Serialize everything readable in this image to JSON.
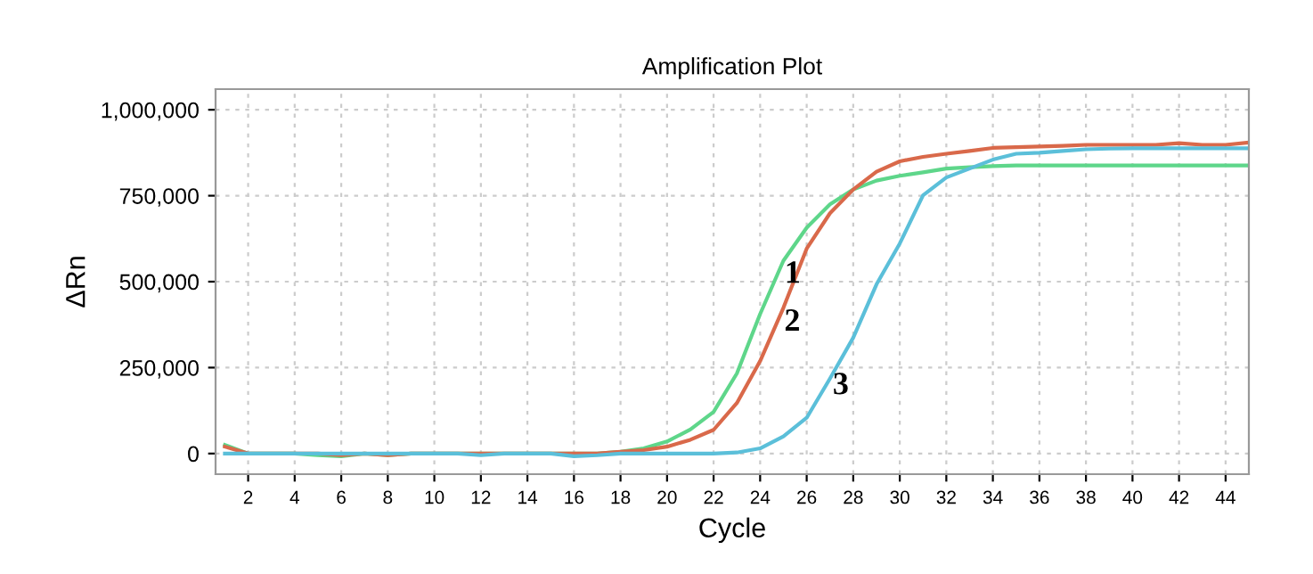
{
  "chart_data": {
    "type": "line",
    "title": "Amplification Plot",
    "xlabel": "Cycle",
    "ylabel": "ΔRn",
    "x": [
      1,
      2,
      3,
      4,
      5,
      6,
      7,
      8,
      9,
      10,
      11,
      12,
      13,
      14,
      15,
      16,
      17,
      18,
      19,
      20,
      21,
      22,
      23,
      24,
      25,
      26,
      27,
      28,
      29,
      30,
      31,
      32,
      33,
      34,
      35,
      36,
      37,
      38,
      39,
      40,
      41,
      42,
      43,
      44,
      45
    ],
    "series": [
      {
        "name": "1",
        "color": "#5ed68a",
        "values": [
          25000,
          0,
          0,
          0,
          -5000,
          -8000,
          0,
          -5000,
          0,
          0,
          0,
          0,
          0,
          0,
          0,
          0,
          0,
          5000,
          15000,
          35000,
          70000,
          121000,
          233000,
          406000,
          561000,
          657000,
          725000,
          768000,
          794000,
          808000,
          818000,
          829000,
          833000,
          836000,
          838000,
          838000,
          838000,
          838000,
          838000,
          838000,
          838000,
          838000,
          838000,
          838000,
          838000
        ]
      },
      {
        "name": "2",
        "color": "#d9694a",
        "values": [
          20000,
          0,
          0,
          0,
          0,
          -5000,
          0,
          -5000,
          0,
          0,
          0,
          0,
          0,
          0,
          0,
          0,
          0,
          5000,
          10000,
          20000,
          40000,
          69000,
          147000,
          269000,
          424000,
          596000,
          699000,
          768000,
          820000,
          850000,
          863000,
          872000,
          880000,
          889000,
          891000,
          893000,
          895000,
          898000,
          898000,
          898000,
          898000,
          903000,
          898000,
          898000,
          905000
        ]
      },
      {
        "name": "3",
        "color": "#5bbfd9",
        "values": [
          0,
          0,
          0,
          0,
          0,
          0,
          0,
          0,
          0,
          0,
          0,
          -5000,
          0,
          0,
          0,
          -8000,
          -5000,
          0,
          0,
          0,
          0,
          0,
          3000,
          15000,
          50000,
          104000,
          218000,
          337000,
          492000,
          611000,
          751000,
          803000,
          829000,
          855000,
          872000,
          875000,
          880000,
          885000,
          887000,
          888000,
          888000,
          888000,
          888000,
          888000,
          888000
        ]
      }
    ],
    "xlim": [
      0.6,
      45
    ],
    "xticks": [
      2,
      4,
      6,
      8,
      10,
      12,
      14,
      16,
      18,
      20,
      22,
      24,
      26,
      28,
      30,
      32,
      34,
      36,
      38,
      40,
      42,
      44
    ],
    "ylim": [
      -60000,
      1060000
    ],
    "yticks": [
      {
        "value": 0,
        "label": "0"
      },
      {
        "value": 250000,
        "label": "250,000"
      },
      {
        "value": 500000,
        "label": "500,000"
      },
      {
        "value": 750000,
        "label": "750,000"
      },
      {
        "value": 1000000,
        "label": "1,000,000"
      }
    ],
    "grid": true,
    "legend": false,
    "marker": "none",
    "line_style": "solid"
  }
}
